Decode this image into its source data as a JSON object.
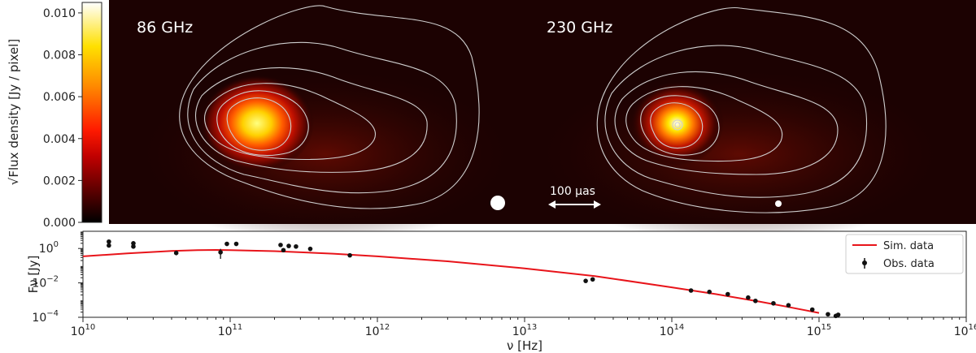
{
  "colors": {
    "sim_line": "#e8141a",
    "obs_point": "#111111",
    "contour": "#cfcfcf",
    "map_bg": "#1c0202"
  },
  "chart_data": [
    {
      "type": "heatmap",
      "panels": [
        {
          "label": "86 GHz"
        },
        {
          "label": "230 GHz"
        }
      ],
      "scalebar_label": "100 μas",
      "colorbar": {
        "label": "√Flux density [Jy / pixel]",
        "colormap": "hot",
        "ticks": [
          "0.000",
          "0.002",
          "0.004",
          "0.006",
          "0.008",
          "0.010"
        ],
        "tick_values": [
          0.0,
          0.002,
          0.004,
          0.006,
          0.008,
          0.01
        ],
        "range": [
          0.0,
          0.0105
        ]
      }
    },
    {
      "type": "scatter",
      "xlabel": "ν [Hz]",
      "ylabel": "Fν [Jy]",
      "xscale": "log",
      "yscale": "log",
      "xlim": [
        10000000000.0,
        1e+16
      ],
      "ylim": [
        0.0001,
        10
      ],
      "x_ticks": [
        {
          "base": "10",
          "exp": "10",
          "value": 10000000000.0
        },
        {
          "base": "10",
          "exp": "11",
          "value": 100000000000.0
        },
        {
          "base": "10",
          "exp": "12",
          "value": 1000000000000.0
        },
        {
          "base": "10",
          "exp": "13",
          "value": 10000000000000.0
        },
        {
          "base": "10",
          "exp": "14",
          "value": 100000000000000.0
        },
        {
          "base": "10",
          "exp": "15",
          "value": 1000000000000000.0
        },
        {
          "base": "10",
          "exp": "16",
          "value": 1e+16
        }
      ],
      "y_ticks": [
        {
          "base": "10",
          "exp": "0",
          "value": 1
        },
        {
          "base": "10",
          "exp": "−2",
          "value": 0.01
        },
        {
          "base": "10",
          "exp": "−4",
          "value": 0.0001
        }
      ],
      "legend_position": "top-right",
      "series": [
        {
          "name": "Sim. data",
          "kind": "line",
          "x": [
            10000000000.0,
            20000000000.0,
            40000000000.0,
            60000000000.0,
            80000000000.0,
            100000000000.0,
            200000000000.0,
            500000000000.0,
            1000000000000.0,
            3000000000000.0,
            10000000000000.0,
            30000000000000.0,
            100000000000000.0,
            200000000000000.0,
            400000000000000.0,
            600000000000000.0,
            800000000000000.0,
            1000000000000000.0
          ],
          "y": [
            0.35,
            0.52,
            0.72,
            0.8,
            0.82,
            0.8,
            0.7,
            0.5,
            0.35,
            0.18,
            0.07,
            0.025,
            0.0055,
            0.0022,
            0.0008,
            0.00042,
            0.00026,
            0.00018
          ]
        },
        {
          "name": "Obs. data",
          "kind": "errorbar",
          "points": [
            {
              "x": 15000000000.0,
              "y": 2.5
            },
            {
              "x": 15000000000.0,
              "y": 1.5
            },
            {
              "x": 22000000000.0,
              "y": 2.0
            },
            {
              "x": 22000000000.0,
              "y": 1.3
            },
            {
              "x": 43000000000.0,
              "y": 0.55,
              "yerr": 0.15
            },
            {
              "x": 86000000000.0,
              "y": 0.6,
              "yerr": 0.35
            },
            {
              "x": 95000000000.0,
              "y": 1.85
            },
            {
              "x": 110000000000.0,
              "y": 1.85
            },
            {
              "x": 220000000000.0,
              "y": 1.6
            },
            {
              "x": 230000000000.0,
              "y": 0.8
            },
            {
              "x": 250000000000.0,
              "y": 1.4
            },
            {
              "x": 280000000000.0,
              "y": 1.3
            },
            {
              "x": 350000000000.0,
              "y": 0.95
            },
            {
              "x": 650000000000.0,
              "y": 0.4
            },
            {
              "x": 26000000000000.0,
              "y": 0.013
            },
            {
              "x": 29000000000000.0,
              "y": 0.016
            },
            {
              "x": 135000000000000.0,
              "y": 0.0036
            },
            {
              "x": 180000000000000.0,
              "y": 0.003
            },
            {
              "x": 240000000000000.0,
              "y": 0.0022
            },
            {
              "x": 330000000000000.0,
              "y": 0.0014
            },
            {
              "x": 370000000000000.0,
              "y": 0.0009
            },
            {
              "x": 490000000000000.0,
              "y": 0.00065
            },
            {
              "x": 620000000000000.0,
              "y": 0.0005
            },
            {
              "x": 900000000000000.0,
              "y": 0.00028
            },
            {
              "x": 1150000000000000.0,
              "y": 0.00015
            },
            {
              "x": 1300000000000000.0,
              "y": 0.00012
            },
            {
              "x": 1350000000000000.0,
              "y": 0.00014
            }
          ]
        }
      ]
    }
  ]
}
